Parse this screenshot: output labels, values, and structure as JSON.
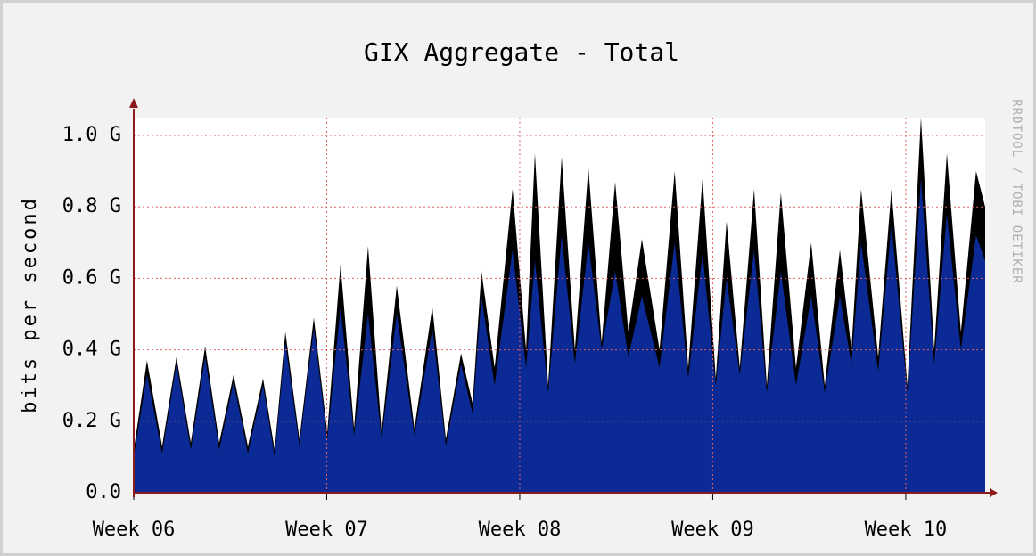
{
  "chart_data": {
    "type": "area",
    "title": "GIX Aggregate - Total",
    "y_label": "bits per second",
    "watermark": "RRDTOOL / TOBI OETIKER",
    "x": [
      0,
      0.48,
      1.03,
      1.55,
      2.07,
      2.59,
      3.1,
      3.62,
      4.14,
      4.69,
      5.11,
      5.5,
      6.01,
      6.53,
      7.02,
      7.5,
      7.99,
      8.5,
      8.99,
      9.54,
      10.18,
      10.83,
      11.32,
      11.87,
      12.29,
      12.61,
      13.09,
      13.74,
      14.23,
      14.55,
      15.03,
      15.52,
      16.0,
      16.49,
      16.97,
      17.46,
      17.94,
      18.43,
      19.07,
      19.62,
      20.11,
      20.63,
      21.11,
      21.5,
      21.98,
      22.5,
      22.96,
      23.47,
      24.02,
      24.57,
      25.06,
      25.61,
      26.03,
      26.38,
      27.0,
      27.48,
      28.06,
      28.55,
      29.03,
      29.49,
      30.0,
      30.55,
      30.88
    ],
    "series": [
      {
        "color": "#000000",
        "values": [
          0.12,
          0.37,
          0.13,
          0.38,
          0.14,
          0.41,
          0.14,
          0.33,
          0.13,
          0.32,
          0.12,
          0.45,
          0.15,
          0.49,
          0.17,
          0.64,
          0.18,
          0.69,
          0.17,
          0.58,
          0.18,
          0.52,
          0.15,
          0.39,
          0.25,
          0.62,
          0.35,
          0.85,
          0.4,
          0.95,
          0.3,
          0.94,
          0.4,
          0.91,
          0.42,
          0.87,
          0.45,
          0.71,
          0.4,
          0.9,
          0.35,
          0.88,
          0.32,
          0.76,
          0.35,
          0.85,
          0.3,
          0.84,
          0.35,
          0.7,
          0.3,
          0.68,
          0.4,
          0.85,
          0.38,
          0.85,
          0.3,
          1.05,
          0.4,
          0.95,
          0.45,
          0.9,
          0.8
        ]
      },
      {
        "color": "#0c2a96",
        "values": [
          0.1,
          0.33,
          0.11,
          0.36,
          0.12,
          0.38,
          0.12,
          0.31,
          0.11,
          0.3,
          0.1,
          0.42,
          0.13,
          0.46,
          0.15,
          0.52,
          0.16,
          0.5,
          0.15,
          0.5,
          0.16,
          0.46,
          0.13,
          0.36,
          0.22,
          0.55,
          0.3,
          0.68,
          0.35,
          0.65,
          0.28,
          0.72,
          0.36,
          0.7,
          0.4,
          0.62,
          0.38,
          0.55,
          0.35,
          0.7,
          0.32,
          0.67,
          0.3,
          0.6,
          0.33,
          0.68,
          0.28,
          0.62,
          0.3,
          0.55,
          0.28,
          0.55,
          0.36,
          0.7,
          0.34,
          0.75,
          0.28,
          0.88,
          0.36,
          0.78,
          0.4,
          0.72,
          0.65
        ]
      }
    ],
    "xlim": [
      0,
      30.88
    ],
    "xticks": [
      {
        "value": 0,
        "label": "Week 06"
      },
      {
        "value": 7,
        "label": "Week 07"
      },
      {
        "value": 14,
        "label": "Week 08"
      },
      {
        "value": 21,
        "label": "Week 09"
      },
      {
        "value": 28,
        "label": "Week 10"
      }
    ],
    "ylim": [
      0,
      1.05
    ],
    "yticks": [
      {
        "value": 0,
        "label": "0.0"
      },
      {
        "value": 0.2,
        "label": "0.2 G"
      },
      {
        "value": 0.4,
        "label": "0.4 G"
      },
      {
        "value": 0.6,
        "label": "0.6 G"
      },
      {
        "value": 0.8,
        "label": "0.8 G"
      },
      {
        "value": 1.0,
        "label": "1.0 G"
      }
    ],
    "grid": true
  }
}
